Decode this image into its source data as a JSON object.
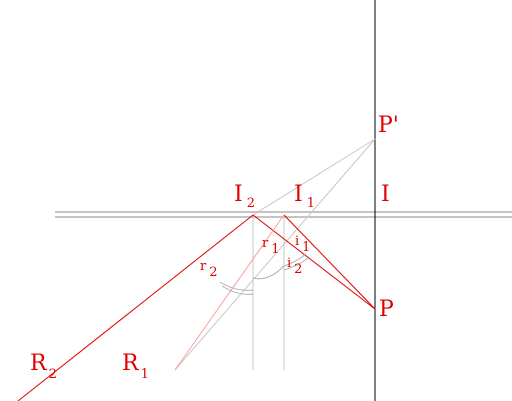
{
  "labels": {
    "p_image": "P'",
    "p": "P",
    "i": "I",
    "i1": "I",
    "i1_sub": "1",
    "i2": "I",
    "i2_sub": "2",
    "r_big1": "R",
    "r_big1_sub": "1",
    "r_big2": "R",
    "r_big2_sub": "2",
    "r_small1": "r",
    "r_small1_sub": "1",
    "r_small2": "r",
    "r_small2_sub": "2",
    "i_small1": "i",
    "i_small1_sub": "1",
    "i_small2": "i",
    "i_small2_sub": "2"
  },
  "colors": {
    "ray": "#e00000",
    "construction": "#b8b8b8",
    "axis": "#000000",
    "label": "#e00000"
  }
}
